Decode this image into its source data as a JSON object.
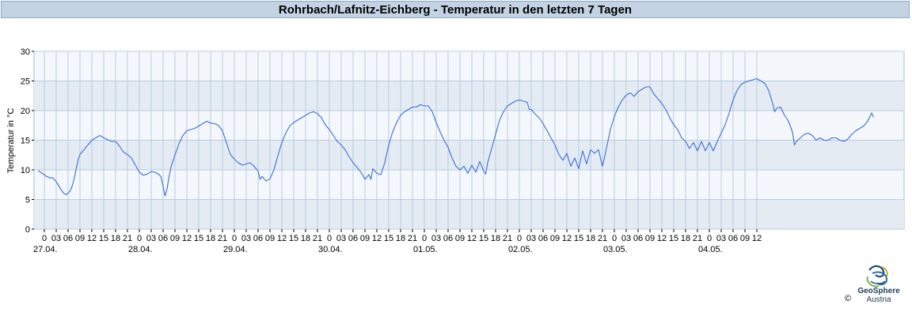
{
  "header": {
    "title": "Rohrbach/Lafnitz-Eichberg - Temperatur in den letzten 7 Tagen"
  },
  "chart_data": {
    "type": "line",
    "title": "Rohrbach/Lafnitz-Eichberg - Temperatur in den letzten 7 Tagen",
    "ylabel": "Temperatur in °C",
    "xlabel": "",
    "ylim": [
      0,
      30
    ],
    "yticks": [
      0,
      5,
      10,
      15,
      20,
      25,
      30
    ],
    "x_start_label": "27.04. 00:00",
    "x_hour_ticks": [
      "0",
      "03",
      "06",
      "09",
      "12",
      "15",
      "18",
      "21",
      "0",
      "03",
      "06",
      "09",
      "12",
      "15",
      "18",
      "21",
      "0",
      "03",
      "06",
      "09",
      "12",
      "15",
      "18",
      "21",
      "0",
      "03",
      "06",
      "09",
      "12",
      "15",
      "18",
      "21",
      "0",
      "03",
      "06",
      "09",
      "12",
      "15",
      "18",
      "21",
      "0",
      "03",
      "06",
      "09",
      "12",
      "15",
      "18",
      "21",
      "0",
      "03",
      "06",
      "09",
      "12",
      "15",
      "18",
      "21",
      "0",
      "03",
      "06",
      "09",
      "12"
    ],
    "day_labels": [
      "27.04.",
      "28.04.",
      "29.04.",
      "30.04.",
      "01.05.",
      "02.05.",
      "03.05.",
      "04.05."
    ],
    "grid": true,
    "series": [
      {
        "name": "",
        "color": "#3a6fd8",
        "points": [
          [
            -1.5,
            9.9
          ],
          [
            -1,
            9.6
          ],
          [
            -0.5,
            9.4
          ],
          [
            0,
            9.2
          ],
          [
            0.5,
            8.9
          ],
          [
            1,
            8.8
          ],
          [
            1.5,
            8.6
          ],
          [
            2,
            8.7
          ],
          [
            2.5,
            8.4
          ],
          [
            3,
            8.0
          ],
          [
            3.5,
            7.5
          ],
          [
            4,
            6.9
          ],
          [
            4.5,
            6.4
          ],
          [
            5,
            6.0
          ],
          [
            5.5,
            5.8
          ],
          [
            6,
            6.1
          ],
          [
            6.5,
            6.4
          ],
          [
            7,
            7.2
          ],
          [
            7.5,
            8.4
          ],
          [
            8,
            10.0
          ],
          [
            8.5,
            11.6
          ],
          [
            9,
            12.6
          ],
          [
            10,
            13.4
          ],
          [
            11,
            14.2
          ],
          [
            12,
            15.0
          ],
          [
            13,
            15.4
          ],
          [
            14,
            15.8
          ],
          [
            15,
            15.4
          ],
          [
            16,
            15.1
          ],
          [
            17,
            14.8
          ],
          [
            18,
            14.8
          ],
          [
            19,
            14.0
          ],
          [
            20,
            13.0
          ],
          [
            21,
            12.6
          ],
          [
            22,
            12.0
          ],
          [
            23,
            10.8
          ],
          [
            24,
            9.6
          ],
          [
            25,
            9.1
          ],
          [
            26,
            9.3
          ],
          [
            27,
            9.7
          ],
          [
            28,
            9.6
          ],
          [
            29,
            9.2
          ],
          [
            29.5,
            8.8
          ],
          [
            30,
            7.2
          ],
          [
            30.5,
            5.6
          ],
          [
            31,
            6.8
          ],
          [
            31.5,
            8.8
          ],
          [
            32,
            10.5
          ],
          [
            33,
            12.5
          ],
          [
            34,
            14.4
          ],
          [
            35,
            15.8
          ],
          [
            36,
            16.6
          ],
          [
            37,
            16.8
          ],
          [
            38,
            17.0
          ],
          [
            39,
            17.4
          ],
          [
            40,
            17.8
          ],
          [
            41,
            18.2
          ],
          [
            42,
            17.9
          ],
          [
            43,
            17.8
          ],
          [
            44,
            17.5
          ],
          [
            45,
            16.6
          ],
          [
            46,
            14.6
          ],
          [
            47,
            12.6
          ],
          [
            48,
            11.8
          ],
          [
            49,
            11.2
          ],
          [
            50,
            10.8
          ],
          [
            51,
            11.0
          ],
          [
            52,
            11.2
          ],
          [
            53,
            10.6
          ],
          [
            54,
            9.8
          ],
          [
            54.5,
            8.4
          ],
          [
            55,
            8.9
          ],
          [
            56,
            8.1
          ],
          [
            57,
            8.5
          ],
          [
            58,
            10.0
          ],
          [
            59,
            12.4
          ],
          [
            60,
            14.6
          ],
          [
            61,
            16.2
          ],
          [
            62,
            17.4
          ],
          [
            63,
            18.0
          ],
          [
            64,
            18.4
          ],
          [
            65,
            18.8
          ],
          [
            66,
            19.2
          ],
          [
            67,
            19.6
          ],
          [
            68,
            19.8
          ],
          [
            69,
            19.5
          ],
          [
            70,
            18.8
          ],
          [
            71,
            17.6
          ],
          [
            72,
            16.8
          ],
          [
            73,
            15.8
          ],
          [
            74,
            14.8
          ],
          [
            75,
            14.2
          ],
          [
            76,
            13.4
          ],
          [
            77,
            12.2
          ],
          [
            78,
            11.2
          ],
          [
            79,
            10.4
          ],
          [
            80,
            9.6
          ],
          [
            81,
            8.4
          ],
          [
            82,
            9.2
          ],
          [
            82.5,
            8.4
          ],
          [
            83,
            10.2
          ],
          [
            84,
            9.4
          ],
          [
            85,
            9.2
          ],
          [
            86,
            11.2
          ],
          [
            87,
            14.2
          ],
          [
            88,
            16.4
          ],
          [
            89,
            18.0
          ],
          [
            90,
            19.2
          ],
          [
            91,
            19.8
          ],
          [
            92,
            20.2
          ],
          [
            93,
            20.6
          ],
          [
            94,
            20.6
          ],
          [
            95,
            21.0
          ],
          [
            96,
            20.8
          ],
          [
            97,
            20.8
          ],
          [
            98,
            19.8
          ],
          [
            99,
            18.0
          ],
          [
            100,
            16.4
          ],
          [
            101,
            15.0
          ],
          [
            102,
            13.8
          ],
          [
            103,
            12.0
          ],
          [
            104,
            10.6
          ],
          [
            105,
            10.0
          ],
          [
            106,
            10.6
          ],
          [
            107,
            9.4
          ],
          [
            108,
            10.8
          ],
          [
            109,
            9.6
          ],
          [
            110,
            11.4
          ],
          [
            111,
            9.8
          ],
          [
            111.5,
            9.3
          ],
          [
            112,
            11.2
          ],
          [
            113,
            13.6
          ],
          [
            114,
            16.0
          ],
          [
            115,
            18.4
          ],
          [
            116,
            19.8
          ],
          [
            117,
            20.8
          ],
          [
            118,
            21.2
          ],
          [
            119,
            21.6
          ],
          [
            120,
            21.8
          ],
          [
            121,
            21.6
          ],
          [
            122,
            21.4
          ],
          [
            122.5,
            20.2
          ],
          [
            123,
            20.2
          ],
          [
            124,
            19.4
          ],
          [
            125,
            18.8
          ],
          [
            126,
            17.8
          ],
          [
            127,
            16.6
          ],
          [
            128,
            15.4
          ],
          [
            129,
            14.2
          ],
          [
            130,
            12.6
          ],
          [
            131,
            11.6
          ],
          [
            132,
            12.8
          ],
          [
            133,
            10.6
          ],
          [
            134,
            12.0
          ],
          [
            135,
            10.2
          ],
          [
            136,
            13.2
          ],
          [
            137,
            11.0
          ],
          [
            138,
            13.4
          ],
          [
            139,
            12.8
          ],
          [
            140,
            13.4
          ],
          [
            141,
            10.6
          ],
          [
            142,
            13.6
          ],
          [
            143,
            16.8
          ],
          [
            144,
            19.0
          ],
          [
            145,
            20.6
          ],
          [
            146,
            21.8
          ],
          [
            147,
            22.6
          ],
          [
            148,
            23.0
          ],
          [
            149,
            22.4
          ],
          [
            150,
            23.2
          ],
          [
            151,
            23.6
          ],
          [
            152,
            24.0
          ],
          [
            153,
            24.0
          ],
          [
            154,
            22.8
          ],
          [
            155,
            22.0
          ],
          [
            156,
            21.2
          ],
          [
            157,
            20.2
          ],
          [
            158,
            18.8
          ],
          [
            159,
            17.6
          ],
          [
            160,
            16.8
          ],
          [
            161,
            15.4
          ],
          [
            162,
            14.8
          ],
          [
            163,
            13.6
          ],
          [
            164,
            14.6
          ],
          [
            165,
            13.2
          ],
          [
            166,
            14.8
          ],
          [
            167,
            13.2
          ],
          [
            168,
            14.6
          ],
          [
            169,
            13.2
          ],
          [
            170,
            14.8
          ],
          [
            171,
            16.2
          ],
          [
            172,
            17.6
          ],
          [
            173,
            19.6
          ],
          [
            174,
            21.8
          ],
          [
            175,
            23.4
          ],
          [
            176,
            24.4
          ],
          [
            177,
            24.8
          ],
          [
            178,
            25.0
          ],
          [
            179,
            25.2
          ],
          [
            180,
            25.4
          ],
          [
            181,
            25.0
          ],
          [
            182,
            24.6
          ],
          [
            183,
            23.4
          ],
          [
            184,
            21.2
          ],
          [
            184.5,
            19.8
          ],
          [
            185,
            20.4
          ],
          [
            186,
            20.6
          ],
          [
            187,
            19.2
          ],
          [
            188,
            18.2
          ],
          [
            189,
            16.4
          ],
          [
            189.5,
            14.2
          ],
          [
            190,
            14.8
          ],
          [
            191,
            15.4
          ],
          [
            192,
            16.0
          ],
          [
            193,
            16.2
          ],
          [
            194,
            15.8
          ],
          [
            195,
            15.0
          ],
          [
            196,
            15.4
          ],
          [
            197,
            15.0
          ],
          [
            198,
            15.0
          ],
          [
            199,
            15.4
          ],
          [
            200,
            15.4
          ],
          [
            201,
            15.0
          ],
          [
            202,
            14.8
          ],
          [
            203,
            15.2
          ],
          [
            204,
            16.0
          ],
          [
            205,
            16.6
          ],
          [
            206,
            17.0
          ],
          [
            207,
            17.4
          ],
          [
            208,
            18.2
          ],
          [
            209,
            19.6
          ],
          [
            209.5,
            18.9
          ]
        ]
      }
    ]
  },
  "logo": {
    "name": "GeoSphere",
    "sub": "Austria",
    "copyright": "©"
  }
}
